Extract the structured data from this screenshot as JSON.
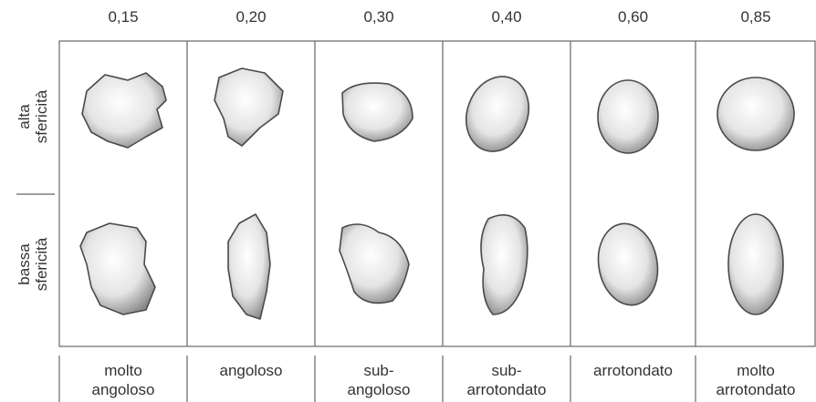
{
  "columns": [
    {
      "roundness": "0,15",
      "label": [
        "molto",
        "angoloso"
      ]
    },
    {
      "roundness": "0,20",
      "label": [
        "angoloso"
      ]
    },
    {
      "roundness": "0,30",
      "label": [
        "sub-",
        "angoloso"
      ]
    },
    {
      "roundness": "0,40",
      "label": [
        "sub-",
        "arrotondato"
      ]
    },
    {
      "roundness": "0,60",
      "label": [
        "arrotondato"
      ]
    },
    {
      "roundness": "0,85",
      "label": [
        "molto",
        "arrotondato"
      ]
    }
  ],
  "rows": [
    {
      "label": [
        "alta",
        "sfericità"
      ]
    },
    {
      "label": [
        "bassa",
        "sfericità"
      ]
    }
  ]
}
